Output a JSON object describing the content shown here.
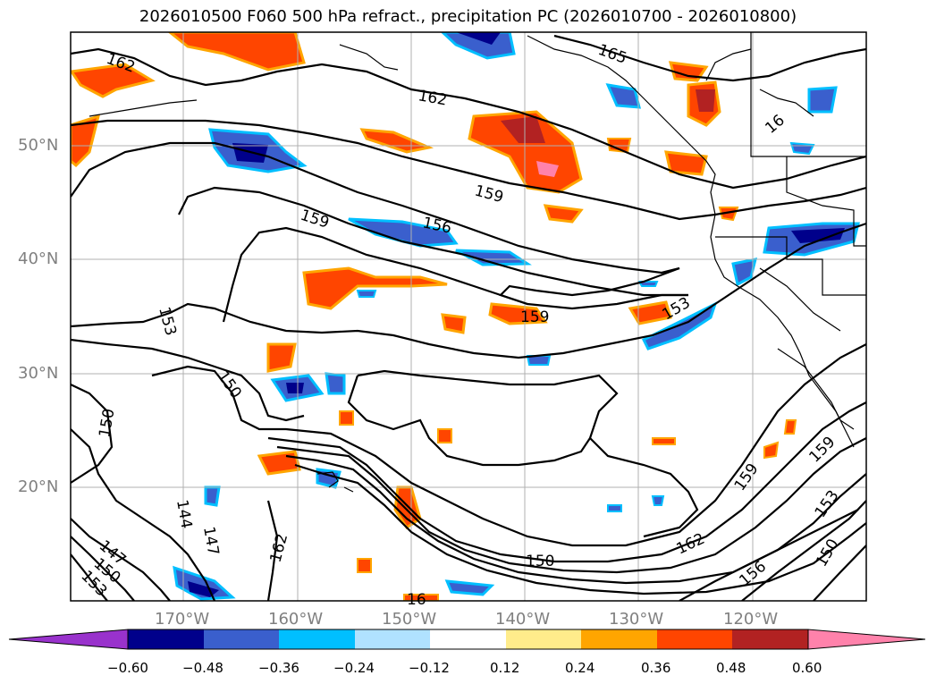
{
  "title": "2026010500 F060 500 hPa refract., precipitation PC (2026010700 - 2026010800)",
  "lat_labels": [
    "50°N",
    "40°N",
    "30°N",
    "20°N"
  ],
  "lon_labels": [
    "170°W",
    "160°W",
    "150°W",
    "140°W",
    "130°W",
    "120°W"
  ],
  "colorbar": {
    "ticks": [
      "−0.60",
      "−0.48",
      "−0.36",
      "−0.24",
      "−0.12",
      "0.12",
      "0.24",
      "0.36",
      "0.48",
      "0.60"
    ],
    "colors": [
      "#9932cc",
      "#00008b",
      "#3a5fcd",
      "#00bfff",
      "#b0e2ff",
      "#ffffff",
      "#ffec8b",
      "#ffa500",
      "#ff4500",
      "#b22222",
      "#ff82ab"
    ]
  },
  "contour_labels": {
    "c162a": "162",
    "c165": "165",
    "c162b": "162",
    "c16": "16",
    "c159a": "159",
    "c159b": "159",
    "c156a": "156",
    "c159c": "159",
    "c153a": "153",
    "c153b": "153",
    "c150a": "150",
    "c150b": "150",
    "c159d": "159",
    "c159e": "159",
    "c153c": "153",
    "c150c": "150",
    "c162c": "162",
    "c156b": "156",
    "c144": "144",
    "c147a": "147",
    "c162d": "162",
    "c147b": "147",
    "c150d": "150",
    "c153d": "153",
    "c150e": "150",
    "c16b": "16"
  }
}
